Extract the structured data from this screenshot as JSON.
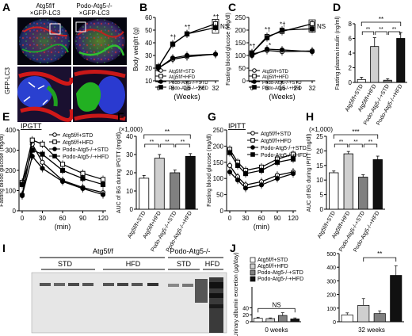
{
  "panel_labels": [
    "A",
    "B",
    "C",
    "D",
    "E",
    "F",
    "G",
    "H",
    "I",
    "J"
  ],
  "panel_a": {
    "col_labels": [
      [
        "Atg5f/f",
        "×GFP-LC3"
      ],
      [
        "Podo-Atg5-/-",
        "×GFP-LC3"
      ]
    ],
    "row_label": "GFP-LC3"
  },
  "legend_4": [
    {
      "name": "Atg5f/f+STD",
      "marker": "open-circle"
    },
    {
      "name": "Atg5f/f+HFD",
      "marker": "open-square"
    },
    {
      "name": "Podo-Atg5-/-+STD",
      "marker": "filled-circle"
    },
    {
      "name": "Podo-Atg5-/-+HFD",
      "marker": "filled-square"
    }
  ],
  "bar_colors": [
    "#ffffff",
    "#cfcfcf",
    "#808080",
    "#111111"
  ],
  "panel_i": {
    "header": "Atg5f/f",
    "header2": "Podo-Atg5-/-",
    "groups": [
      "STD",
      "HFD",
      "STD",
      "HFD"
    ]
  },
  "chart_data": [
    {
      "panel": "B",
      "type": "line",
      "x": [
        0,
        8,
        16,
        32
      ],
      "xlabel": "(Weeks)",
      "ylabel": "Body weight (g)",
      "xticks": [
        0,
        8,
        16,
        24,
        32
      ],
      "ylim": [
        10,
        60
      ],
      "yticks": [
        10,
        20,
        30,
        40,
        50,
        60
      ],
      "annotation": "NS",
      "star_text": "*†",
      "series": [
        {
          "name": "Atg5f/f+STD",
          "values": [
            20,
            27,
            29,
            31
          ]
        },
        {
          "name": "Atg5f/f+HFD",
          "values": [
            21,
            39,
            47,
            55
          ]
        },
        {
          "name": "Podo-Atg5-/-+STD",
          "values": [
            20,
            28,
            30,
            31
          ]
        },
        {
          "name": "Podo-Atg5-/-+HFD",
          "values": [
            21,
            39,
            47,
            52
          ]
        }
      ]
    },
    {
      "panel": "C",
      "type": "line",
      "x": [
        0,
        8,
        16,
        32
      ],
      "xlabel": "(Weeks)",
      "ylabel": "Fasting blood glucose (mg/dl)",
      "xticks": [
        0,
        8,
        16,
        24,
        32
      ],
      "ylim": [
        0,
        250
      ],
      "yticks": [
        0,
        50,
        100,
        150,
        200,
        250
      ],
      "annotation": "NS",
      "star_text": "*†",
      "star_only": "*",
      "series": [
        {
          "name": "Atg5f/f+STD",
          "values": [
            105,
            120,
            115,
            118
          ]
        },
        {
          "name": "Atg5f/f+HFD",
          "values": [
            110,
            175,
            195,
            225
          ]
        },
        {
          "name": "Podo-Atg5-/-+STD",
          "values": [
            100,
            125,
            122,
            115
          ]
        },
        {
          "name": "Podo-Atg5-/-+HFD",
          "values": [
            110,
            170,
            200,
            205
          ]
        }
      ]
    },
    {
      "panel": "D",
      "type": "bar",
      "ylabel": "Fasting plasma insulin (ng/ml)",
      "ylim": [
        0,
        8
      ],
      "yticks": [
        0,
        2,
        4,
        6,
        8
      ],
      "categories": [
        "Atg5f/f+STD",
        "Atg5f/f+HFD",
        "Podo-Atg5-/-+STD",
        "Podo-Atg5-/-+HFD"
      ],
      "values": [
        0.4,
        4.9,
        0.3,
        6.0
      ],
      "errors": [
        0.3,
        1.2,
        0.2,
        0.8
      ],
      "sig": {
        "top": "**",
        "low": "****"
      }
    },
    {
      "panel": "E",
      "type": "line",
      "title": "IPGTT",
      "x": [
        0,
        15,
        30,
        60,
        90,
        120
      ],
      "xlabel": "(min)",
      "ylabel": "Fasting blood glucose (mg/dl)",
      "xticks": [
        0,
        30,
        60,
        90,
        120
      ],
      "ylim": [
        0,
        400
      ],
      "yticks": [
        0,
        100,
        200,
        300,
        400
      ],
      "series": [
        {
          "name": "Atg5f/f+STD",
          "values": [
            80,
            330,
            240,
            150,
            115,
            90
          ]
        },
        {
          "name": "Atg5f/f+HFD",
          "values": [
            140,
            350,
            330,
            230,
            185,
            155
          ]
        },
        {
          "name": "Podo-Atg5-/-+STD",
          "values": [
            75,
            270,
            210,
            145,
            110,
            80
          ]
        },
        {
          "name": "Podo-Atg5-/-+HFD",
          "values": [
            130,
            300,
            280,
            200,
            160,
            130
          ]
        }
      ]
    },
    {
      "panel": "F",
      "type": "bar",
      "ylabel": "AUC of BG during IPGTT (mg/dl)",
      "multiplier": "(×1,000)",
      "ylim": [
        0,
        40
      ],
      "yticks": [
        0,
        10,
        20,
        30,
        40
      ],
      "categories": [
        "Atg5f/f+STD",
        "Atg5f/f+HFD",
        "Podo-Atg5-/-+STD",
        "Podo-Atg5-/-+HFD"
      ],
      "values": [
        17,
        28,
        20,
        29
      ],
      "errors": [
        1.5,
        2,
        1.5,
        1.5
      ],
      "sig": {
        "top": "**",
        "low": "****"
      }
    },
    {
      "panel": "G",
      "type": "line",
      "title": "IPITT",
      "x": [
        0,
        15,
        30,
        60,
        90,
        120
      ],
      "xlabel": "(min)",
      "ylabel": "Fasting blood glucose (mg/dl)",
      "xticks": [
        0,
        30,
        60,
        90,
        120
      ],
      "ylim": [
        0,
        250
      ],
      "yticks": [
        0,
        50,
        100,
        150,
        200,
        250
      ],
      "series": [
        {
          "name": "Atg5f/f+STD",
          "values": [
            140,
            105,
            80,
            90,
            110,
            120
          ]
        },
        {
          "name": "Atg5f/f+HFD",
          "values": [
            190,
            150,
            125,
            135,
            160,
            175
          ]
        },
        {
          "name": "Podo-Atg5-/-+STD",
          "values": [
            120,
            95,
            70,
            80,
            100,
            115
          ]
        },
        {
          "name": "Podo-Atg5-/-+HFD",
          "values": [
            180,
            140,
            115,
            125,
            150,
            160
          ]
        }
      ]
    },
    {
      "panel": "H",
      "type": "bar",
      "ylabel": "AUC of BG during IPITT (mg/dl)",
      "multiplier": "(×1,000)",
      "ylim": [
        0,
        25
      ],
      "yticks": [
        0,
        5,
        10,
        15,
        20,
        25
      ],
      "categories": [
        "Atg5f/f+STD",
        "Atg5f/f+HFD",
        "Podo-Atg5-/-+STD",
        "Podo-Atg5-/-+HFD"
      ],
      "values": [
        12.5,
        19,
        11,
        17
      ],
      "errors": [
        0.6,
        0.8,
        0.8,
        1.2
      ],
      "sig": {
        "top": "***",
        "low": "******"
      }
    },
    {
      "panel": "J",
      "type": "bar",
      "ylabel": "Urinary albumin excretion (µg/day)",
      "legend": [
        "Atg5f/f+STD",
        "Atg5f/f+HFD",
        "Podo-Atg5-/-+STD",
        "Podo-Atg5-/-+HFD"
      ],
      "groups": [
        {
          "label": "0 weeks",
          "ylim": [
            0,
            100
          ],
          "yticks": [
            0,
            20,
            40,
            60,
            80,
            100
          ],
          "values": [
            10,
            9,
            18,
            8
          ],
          "errors": [
            3,
            2,
            8,
            3
          ],
          "sig": "NS"
        },
        {
          "label": "32 weeks",
          "ylim": [
            0,
            500
          ],
          "yticks": [
            0,
            100,
            200,
            300,
            400,
            500
          ],
          "values": [
            50,
            120,
            60,
            340
          ],
          "errors": [
            15,
            50,
            20,
            70
          ],
          "sig": "**"
        }
      ]
    }
  ]
}
